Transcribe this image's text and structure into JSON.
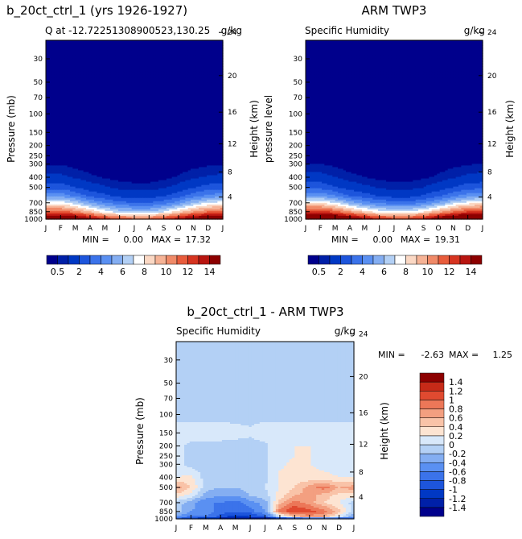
{
  "panels": [
    {
      "id": "model",
      "title": "b_20ct_ctrl_1 (yrs 1926-1927)",
      "subtitle": "Q at -12.72251308900523,130.25",
      "units": "g/kg",
      "ylabel_left": "Pressure (mb)",
      "ylabel_right": "Height (km)",
      "stats": {
        "min_label": "MIN =",
        "min_value": "0.00",
        "max_label": "MAX =",
        "max_value": "17.32"
      }
    },
    {
      "id": "obs",
      "title": "ARM TWP3",
      "subtitle": "Specific Humidity",
      "units": "g/kg",
      "ylabel_left": "pressure level",
      "ylabel_right": "Height (km)",
      "stats": {
        "min_label": "MIN =",
        "min_value": "0.00",
        "max_label": "MAX =",
        "max_value": "19.31"
      }
    },
    {
      "id": "diff",
      "title": "b_20ct_ctrl_1 - ARM TWP3",
      "subtitle": "Specific Humidity",
      "units": "g/kg",
      "ylabel_left": "Pressure (mb)",
      "ylabel_right": "Height (km)",
      "stats": {
        "min_label": "MIN =",
        "min_value": "-2.63",
        "max_label": "MAX =",
        "max_value": "1.25"
      }
    }
  ],
  "chart_data": [
    {
      "type": "heatmap",
      "title": "b_20ct_ctrl_1 (yrs 1926-1927)",
      "subtitle": "Q at -12.72251308900523,130.25",
      "units": "g/kg",
      "xlabel": "",
      "ylabel": "Pressure (mb)",
      "y2label": "Height (km)",
      "x": [
        "J",
        "F",
        "M",
        "A",
        "M",
        "J",
        "J",
        "A",
        "S",
        "O",
        "N",
        "D",
        "J"
      ],
      "y_ticks": [
        30,
        50,
        70,
        100,
        150,
        200,
        250,
        300,
        400,
        500,
        700,
        850,
        1000
      ],
      "y2_ticks": [
        4,
        8,
        12,
        16,
        20,
        24
      ],
      "yscale": "log",
      "yrange": [
        20,
        1000
      ],
      "min": 0.0,
      "max": 17.32,
      "colorbar": {
        "ticks": [
          "0.5",
          "2",
          "4",
          "6",
          "8",
          "10",
          "12",
          "14"
        ]
      },
      "levels": [
        0.5,
        1,
        2,
        3,
        4,
        5,
        6,
        7,
        8,
        9,
        10,
        11,
        12,
        13,
        14
      ],
      "colors": [
        "#00008c",
        "#0020a8",
        "#0038c4",
        "#1d55dc",
        "#3b73ea",
        "#5a90f2",
        "#84aef2",
        "#b3d0f5",
        "#ffffff",
        "#fbd8c4",
        "#f6b396",
        "#f08a68",
        "#e85c3c",
        "#d63420",
        "#b81510",
        "#8c0000"
      ],
      "profiles": [
        {
          "month": "J",
          "pressure": [
            1000,
            850,
            700,
            600,
            500,
            400,
            300,
            250
          ],
          "q": [
            16.8,
            11.5,
            7.5,
            4.6,
            2.6,
            1.2,
            0.45,
            0.2
          ]
        },
        {
          "month": "F",
          "pressure": [
            1000,
            850,
            700,
            600,
            500,
            400,
            300,
            250
          ],
          "q": [
            16.8,
            11.5,
            7.5,
            4.6,
            2.6,
            1.2,
            0.45,
            0.2
          ]
        },
        {
          "month": "M",
          "pressure": [
            1000,
            850,
            700,
            600,
            500,
            400,
            300,
            250
          ],
          "q": [
            16,
            10.5,
            6.5,
            3.8,
            2,
            0.9,
            0.3,
            0.15
          ]
        },
        {
          "month": "A",
          "pressure": [
            1000,
            850,
            700,
            600,
            500,
            400,
            300,
            250
          ],
          "q": [
            14.5,
            9,
            5,
            2.8,
            1.4,
            0.6,
            0.2,
            0.1
          ]
        },
        {
          "month": "M",
          "pressure": [
            1000,
            850,
            700,
            600,
            500,
            400,
            300,
            250
          ],
          "q": [
            13,
            7.5,
            4,
            2.2,
            1.1,
            0.45,
            0.15,
            0.08
          ]
        },
        {
          "month": "J",
          "pressure": [
            1000,
            850,
            700,
            600,
            500,
            400,
            300,
            250
          ],
          "q": [
            12,
            6.5,
            3.3,
            1.7,
            0.8,
            0.3,
            0.1,
            0.05
          ]
        },
        {
          "month": "J",
          "pressure": [
            1000,
            850,
            700,
            600,
            500,
            400,
            300,
            250
          ],
          "q": [
            11.5,
            6,
            3,
            1.5,
            0.7,
            0.25,
            0.08,
            0.04
          ]
        },
        {
          "month": "A",
          "pressure": [
            1000,
            850,
            700,
            600,
            500,
            400,
            300,
            250
          ],
          "q": [
            11.5,
            6,
            3,
            1.5,
            0.7,
            0.25,
            0.08,
            0.04
          ]
        },
        {
          "month": "S",
          "pressure": [
            1000,
            850,
            700,
            600,
            500,
            400,
            300,
            250
          ],
          "q": [
            12.5,
            7,
            3.5,
            1.9,
            0.9,
            0.35,
            0.1,
            0.05
          ]
        },
        {
          "month": "O",
          "pressure": [
            1000,
            850,
            700,
            600,
            500,
            400,
            300,
            250
          ],
          "q": [
            14,
            8.5,
            4.5,
            2.6,
            1.3,
            0.55,
            0.18,
            0.08
          ]
        },
        {
          "month": "N",
          "pressure": [
            1000,
            850,
            700,
            600,
            500,
            400,
            300,
            250
          ],
          "q": [
            15.5,
            10,
            6,
            3.5,
            1.9,
            0.85,
            0.3,
            0.12
          ]
        },
        {
          "month": "D",
          "pressure": [
            1000,
            850,
            700,
            600,
            500,
            400,
            300,
            250
          ],
          "q": [
            16.5,
            11,
            7,
            4.3,
            2.4,
            1.1,
            0.4,
            0.18
          ]
        },
        {
          "month": "J",
          "pressure": [
            1000,
            850,
            700,
            600,
            500,
            400,
            300,
            250
          ],
          "q": [
            16.8,
            11.5,
            7.5,
            4.6,
            2.6,
            1.2,
            0.45,
            0.2
          ]
        }
      ]
    },
    {
      "type": "heatmap",
      "title": "ARM TWP3",
      "subtitle": "Specific Humidity",
      "units": "g/kg",
      "xlabel": "",
      "ylabel": "pressure level",
      "y2label": "Height (km)",
      "x": [
        "J",
        "F",
        "M",
        "A",
        "M",
        "J",
        "J",
        "A",
        "S",
        "O",
        "N",
        "D",
        "J"
      ],
      "y_ticks": [
        30,
        50,
        70,
        100,
        150,
        200,
        250,
        300,
        400,
        500,
        700,
        850,
        1000
      ],
      "y2_ticks": [
        4,
        8,
        12,
        16,
        20,
        24
      ],
      "yscale": "log",
      "yrange": [
        20,
        1000
      ],
      "min": 0.0,
      "max": 19.31,
      "colorbar": {
        "ticks": [
          "0.5",
          "2",
          "4",
          "6",
          "8",
          "10",
          "12",
          "14"
        ]
      },
      "levels": [
        0.5,
        1,
        2,
        3,
        4,
        5,
        6,
        7,
        8,
        9,
        10,
        11,
        12,
        13,
        14
      ],
      "colors": [
        "#00008c",
        "#0020a8",
        "#0038c4",
        "#1d55dc",
        "#3b73ea",
        "#5a90f2",
        "#84aef2",
        "#b3d0f5",
        "#ffffff",
        "#fbd8c4",
        "#f6b396",
        "#f08a68",
        "#e85c3c",
        "#d63420",
        "#b81510",
        "#8c0000"
      ],
      "profiles": [
        {
          "month": "J",
          "pressure": [
            1000,
            850,
            700,
            600,
            500,
            400,
            300,
            250
          ],
          "q": [
            18.5,
            12.5,
            8,
            4.8,
            2.7,
            1.3,
            0.5,
            0.22
          ]
        },
        {
          "month": "F",
          "pressure": [
            1000,
            850,
            700,
            600,
            500,
            400,
            300,
            250
          ],
          "q": [
            18.5,
            12.5,
            8,
            4.8,
            2.7,
            1.3,
            0.5,
            0.22
          ]
        },
        {
          "month": "M",
          "pressure": [
            1000,
            850,
            700,
            600,
            500,
            400,
            300,
            250
          ],
          "q": [
            17.5,
            11.5,
            7,
            4,
            2.1,
            1,
            0.35,
            0.15
          ]
        },
        {
          "month": "A",
          "pressure": [
            1000,
            850,
            700,
            600,
            500,
            400,
            300,
            250
          ],
          "q": [
            16,
            10,
            5.5,
            3,
            1.5,
            0.65,
            0.22,
            0.1
          ]
        },
        {
          "month": "M",
          "pressure": [
            1000,
            850,
            700,
            600,
            500,
            400,
            300,
            250
          ],
          "q": [
            14.5,
            8.5,
            4.5,
            2.4,
            1.2,
            0.5,
            0.15,
            0.08
          ]
        },
        {
          "month": "J",
          "pressure": [
            1000,
            850,
            700,
            600,
            500,
            400,
            300,
            250
          ],
          "q": [
            13,
            7.5,
            3.8,
            1.9,
            0.9,
            0.35,
            0.1,
            0.05
          ]
        },
        {
          "month": "J",
          "pressure": [
            1000,
            850,
            700,
            600,
            500,
            400,
            300,
            250
          ],
          "q": [
            12.5,
            7,
            3.4,
            1.6,
            0.75,
            0.28,
            0.08,
            0.04
          ]
        },
        {
          "month": "A",
          "pressure": [
            1000,
            850,
            700,
            600,
            500,
            400,
            300,
            250
          ],
          "q": [
            12.5,
            7,
            3.4,
            1.6,
            0.75,
            0.28,
            0.08,
            0.04
          ]
        },
        {
          "month": "S",
          "pressure": [
            1000,
            850,
            700,
            600,
            500,
            400,
            300,
            250
          ],
          "q": [
            13.5,
            8,
            4,
            2.1,
            1,
            0.4,
            0.12,
            0.05
          ]
        },
        {
          "month": "O",
          "pressure": [
            1000,
            850,
            700,
            600,
            500,
            400,
            300,
            250
          ],
          "q": [
            15.5,
            9.5,
            5,
            2.8,
            1.4,
            0.6,
            0.2,
            0.09
          ]
        },
        {
          "month": "N",
          "pressure": [
            1000,
            850,
            700,
            600,
            500,
            400,
            300,
            250
          ],
          "q": [
            17,
            11,
            6.5,
            3.7,
            2,
            0.9,
            0.32,
            0.14
          ]
        },
        {
          "month": "D",
          "pressure": [
            1000,
            850,
            700,
            600,
            500,
            400,
            300,
            250
          ],
          "q": [
            18,
            12,
            7.5,
            4.5,
            2.5,
            1.2,
            0.45,
            0.2
          ]
        },
        {
          "month": "J",
          "pressure": [
            1000,
            850,
            700,
            600,
            500,
            400,
            300,
            250
          ],
          "q": [
            18.5,
            12.5,
            8,
            4.8,
            2.7,
            1.3,
            0.5,
            0.22
          ]
        }
      ]
    },
    {
      "type": "heatmap",
      "title": "b_20ct_ctrl_1 - ARM TWP3",
      "subtitle": "Specific Humidity",
      "units": "g/kg",
      "xlabel": "",
      "ylabel": "Pressure (mb)",
      "y2label": "Height (km)",
      "x": [
        "J",
        "F",
        "M",
        "A",
        "M",
        "J",
        "J",
        "A",
        "S",
        "O",
        "N",
        "D",
        "J"
      ],
      "y_ticks": [
        30,
        50,
        70,
        100,
        150,
        200,
        250,
        300,
        400,
        500,
        700,
        850,
        1000
      ],
      "y2_ticks": [
        4,
        8,
        12,
        16,
        20,
        24
      ],
      "yscale": "log",
      "yrange": [
        20,
        1000
      ],
      "min": -2.63,
      "max": 1.25,
      "colorbar": {
        "ticks": [
          "-1.4",
          "-1.2",
          "-1",
          "-0.8",
          "-0.6",
          "-0.4",
          "-0.2",
          "0",
          "0.2",
          "0.4",
          "0.6",
          "0.8",
          "1",
          "1.2",
          "1.4"
        ]
      },
      "levels": [
        -1.4,
        -1.2,
        -1,
        -0.8,
        -0.6,
        -0.4,
        -0.2,
        0,
        0.2,
        0.4,
        0.6,
        0.8,
        1,
        1.2,
        1.4
      ],
      "colors": [
        "#00008c",
        "#0020a8",
        "#0038c4",
        "#1d55dc",
        "#3b73ea",
        "#5a90f2",
        "#84aef2",
        "#b3d0f5",
        "#d8e8fa",
        "#fde4d2",
        "#f9c3a8",
        "#f39f80",
        "#ec7758",
        "#e04a30",
        "#c62a18",
        "#8c0000"
      ],
      "pressure_levels": [
        1000,
        950,
        850,
        700,
        600,
        500,
        400,
        300,
        250,
        200,
        150,
        100,
        70,
        50,
        30
      ],
      "grid": [
        [
          -0.9,
          -1.1,
          -1.3,
          -1.4,
          -1.5,
          -1.5,
          -1.6,
          -1.4,
          -1.3,
          -1.2,
          -1.1,
          -1.0,
          -0.9
        ],
        [
          -0.4,
          -0.7,
          -0.6,
          -0.9,
          -1.1,
          -1.0,
          -0.8,
          0.0,
          0.5,
          0.7,
          0.6,
          0.1,
          -0.4
        ],
        [
          -0.1,
          -0.4,
          -0.5,
          -0.7,
          -0.8,
          -0.7,
          -0.4,
          0.9,
          1.2,
          1.1,
          0.9,
          0.5,
          -0.1
        ],
        [
          -0.1,
          -0.3,
          -0.6,
          -0.6,
          -0.7,
          -0.5,
          -0.3,
          0.5,
          0.9,
          0.7,
          0.4,
          0.2,
          -0.1
        ],
        [
          0.3,
          0.1,
          -0.3,
          -0.4,
          -0.4,
          -0.2,
          -0.1,
          0.3,
          0.6,
          0.7,
          0.5,
          0.3,
          0.3
        ],
        [
          0.7,
          0.4,
          -0.1,
          -0.2,
          -0.2,
          -0.1,
          0.0,
          0.2,
          0.4,
          0.7,
          0.9,
          0.6,
          0.7
        ],
        [
          0.2,
          0.25,
          -0.1,
          -0.1,
          -0.1,
          -0.05,
          -0.05,
          0.25,
          0.3,
          0.25,
          0.25,
          0.2,
          0.2
        ],
        [
          0.1,
          -0.1,
          -0.1,
          -0.1,
          -0.05,
          -0.05,
          -0.05,
          0.15,
          0.25,
          0.2,
          0.15,
          0.1,
          0.1
        ],
        [
          0.15,
          -0.1,
          -0.1,
          -0.1,
          -0.1,
          -0.1,
          -0.05,
          0.15,
          0.2,
          0.2,
          0.15,
          0.15,
          0.15
        ],
        [
          0.15,
          -0.1,
          -0.1,
          -0.1,
          -0.1,
          -0.1,
          -0.05,
          0.15,
          0.2,
          0.2,
          0.15,
          0.15,
          0.15
        ],
        [
          0.15,
          0.15,
          0.15,
          0.15,
          0.1,
          0.05,
          0.15,
          0.15,
          0.15,
          0.15,
          0.15,
          0.15,
          0.15
        ],
        [
          -0.1,
          -0.1,
          -0.1,
          -0.1,
          -0.1,
          -0.1,
          -0.1,
          -0.1,
          -0.1,
          -0.1,
          -0.1,
          -0.1,
          -0.1
        ],
        [
          -0.1,
          -0.1,
          -0.1,
          -0.1,
          -0.1,
          -0.1,
          -0.1,
          -0.1,
          -0.1,
          -0.1,
          -0.1,
          -0.1,
          -0.1
        ],
        [
          -0.1,
          -0.1,
          -0.1,
          -0.1,
          -0.1,
          -0.1,
          -0.1,
          -0.1,
          -0.1,
          -0.1,
          -0.1,
          -0.1,
          -0.1
        ],
        [
          -0.1,
          -0.1,
          -0.1,
          -0.1,
          -0.1,
          -0.1,
          -0.1,
          -0.1,
          -0.1,
          -0.1,
          -0.1,
          -0.1,
          -0.1
        ]
      ]
    }
  ]
}
